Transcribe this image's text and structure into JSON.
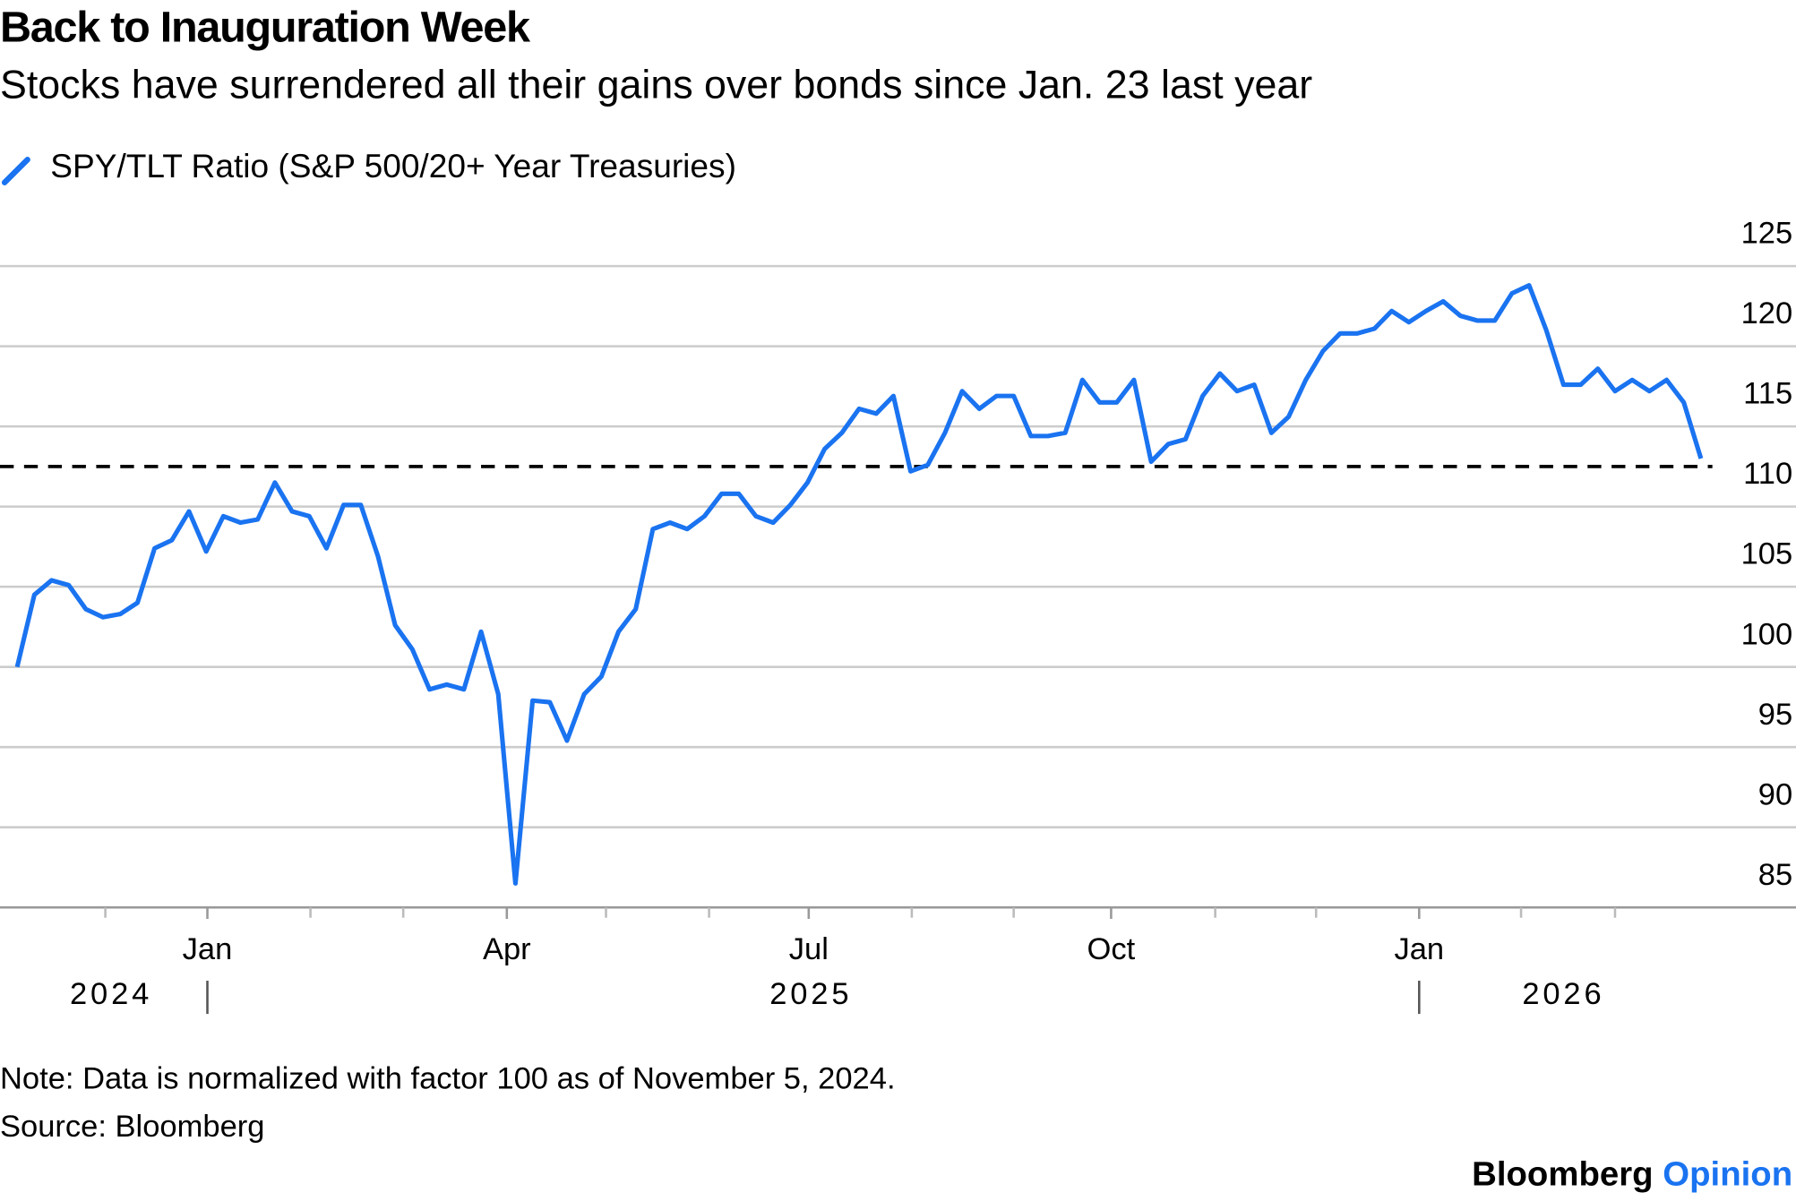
{
  "chart_data": {
    "type": "line",
    "title": "Back to Inauguration Week",
    "subtitle": "Stocks have surrendered all their gains over bonds since Jan. 23 last year",
    "series": [
      {
        "name": "SPY/TLT Ratio (S&P 500/20+ Year Treasuries)",
        "color": "#1a73f0",
        "values": [
          100,
          104.5,
          105.4,
          105.1,
          103.6,
          103.1,
          103.3,
          104.0,
          107.4,
          107.9,
          109.7,
          107.2,
          109.4,
          109.0,
          109.2,
          111.5,
          109.7,
          109.4,
          107.4,
          110.1,
          110.1,
          106.9,
          102.6,
          101.1,
          98.6,
          98.9,
          98.6,
          102.2,
          98.3,
          86.5,
          97.9,
          97.8,
          95.4,
          98.3,
          99.4,
          102.2,
          103.6,
          108.6,
          109.0,
          108.6,
          109.4,
          110.8,
          110.8,
          109.4,
          109.0,
          110.1,
          111.5,
          113.6,
          114.6,
          116.1,
          115.8,
          116.9,
          112.2,
          112.6,
          114.6,
          117.2,
          116.1,
          116.9,
          116.9,
          114.4,
          114.4,
          114.6,
          117.9,
          116.5,
          116.5,
          117.9,
          112.8,
          113.9,
          114.2,
          116.9,
          118.3,
          117.2,
          117.6,
          114.6,
          115.6,
          117.9,
          119.7,
          120.8,
          120.8,
          121.1,
          122.2,
          121.5,
          122.2,
          122.8,
          121.9,
          121.6,
          121.6,
          123.3,
          123.8,
          121.0,
          117.6,
          117.6,
          118.6,
          117.2,
          117.9,
          117.2,
          117.9,
          116.5,
          113.0
        ]
      }
    ],
    "xlim": [
      0,
      98
    ],
    "xticks": [
      {
        "value": 11.07,
        "label": "Jan"
      },
      {
        "value": 28.5,
        "label": "Apr"
      },
      {
        "value": 46.07,
        "label": "Jul"
      },
      {
        "value": 63.67,
        "label": "Oct"
      },
      {
        "value": 81.6,
        "label": "Jan"
      }
    ],
    "xminor_ticks": [
      5.13,
      17.07,
      22.47,
      34.27,
      40.27,
      52.07,
      58,
      69.73,
      75.6,
      87.53,
      93.0
    ],
    "year_labels": [
      {
        "value": 5.47,
        "label": "2024"
      },
      {
        "value": 46.2,
        "label": "2025"
      },
      {
        "value": 90,
        "label": "2026"
      }
    ],
    "year_boundaries": [
      11.07,
      81.6
    ],
    "ylim": [
      85,
      125
    ],
    "yticks": [
      85,
      90,
      95,
      100,
      105,
      110,
      115,
      120,
      125
    ],
    "grid": true,
    "reference_line": 112.5,
    "note": "Note: Data is normalized with factor 100 as of November 5, 2024.",
    "source": "Source: Bloomberg",
    "brand": [
      "Bloomberg",
      "Opinion"
    ]
  }
}
